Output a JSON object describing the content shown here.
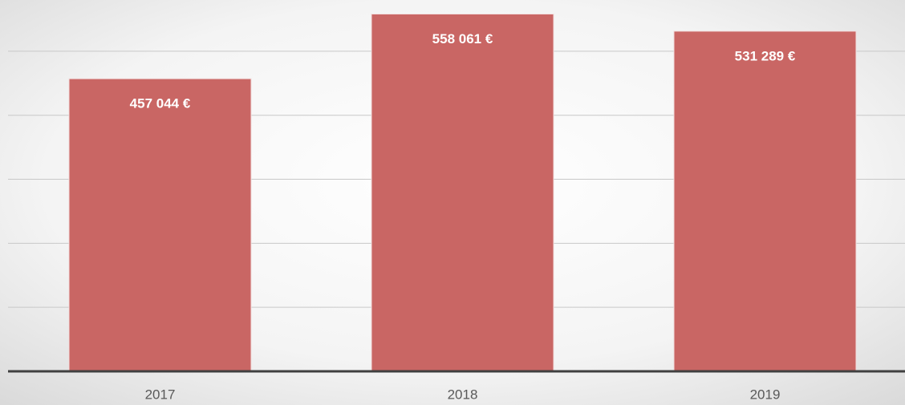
{
  "chart_data": {
    "type": "bar",
    "categories": [
      "2017",
      "2018",
      "2019"
    ],
    "values": [
      457044,
      558061,
      531289
    ],
    "value_labels": [
      "457 044 €",
      "558 061 €",
      "531 289 €"
    ],
    "color": "#c96664",
    "ylim": [
      0,
      580000
    ],
    "yticks": [
      0,
      100000,
      200000,
      300000,
      400000,
      500000
    ],
    "grid": true
  }
}
